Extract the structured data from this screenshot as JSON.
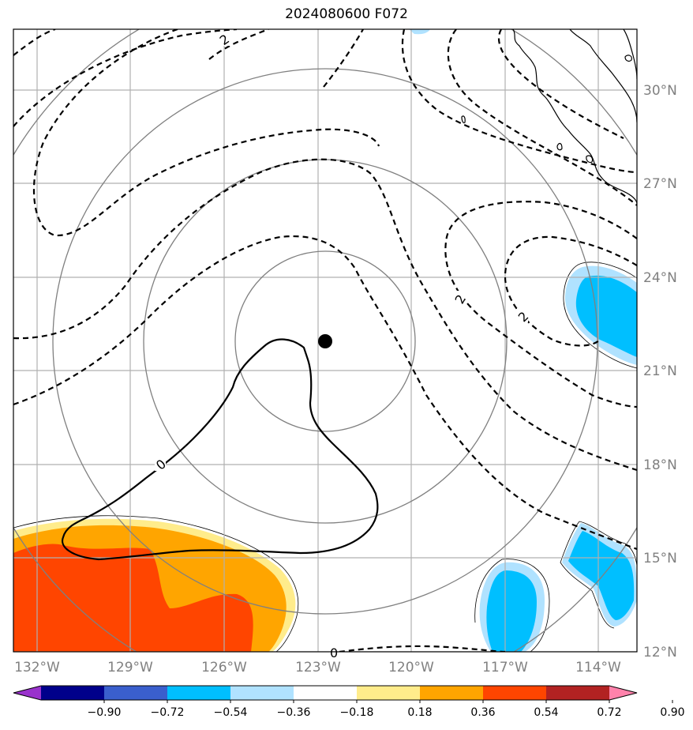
{
  "title": "2024080600 F072",
  "lon_ticks": [
    "132°W",
    "129°W",
    "126°W",
    "123°W",
    "120°W",
    "117°W",
    "114°W"
  ],
  "lat_ticks": [
    "30°N",
    "27°N",
    "24°N",
    "21°N",
    "18°N",
    "15°N",
    "12°N"
  ],
  "colorbar": {
    "ticks": [
      "−0.90",
      "−0.72",
      "−0.54",
      "−0.36",
      "−0.18",
      "0.18",
      "0.36",
      "0.54",
      "0.72",
      "0.90"
    ],
    "colors": [
      "#9932cc",
      "#00008b",
      "#3a5fcd",
      "#00bfff",
      "#b0e2ff",
      "#ffffff",
      "#ffec8b",
      "#ffa500",
      "#ff4500",
      "#b22222",
      "#ff82ab"
    ]
  },
  "contour_labels": [
    "2",
    "2",
    "2",
    "0",
    "0"
  ],
  "center_marker": {
    "lon": -122.8,
    "lat": 21.9
  },
  "palette": {
    "grid": "#b0b0b0",
    "rings": "#808080",
    "coast": "#000000"
  }
}
